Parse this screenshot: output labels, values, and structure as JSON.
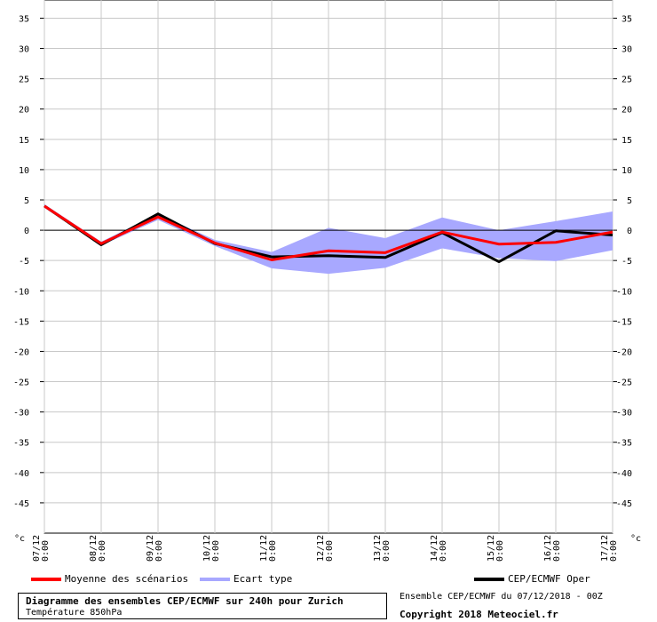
{
  "chart_data": {
    "type": "line",
    "title": "Diagramme des ensembles CEP/ECMWF sur 240h pour Zurich",
    "subtitle": "Température 850hPa",
    "ylabel": "°c",
    "ylim": [
      -50,
      38
    ],
    "yticks": [
      35,
      30,
      25,
      20,
      15,
      10,
      5,
      0,
      -5,
      -10,
      -15,
      -20,
      -25,
      -30,
      -35,
      -40,
      -45
    ],
    "x": [
      "07/12 0:00",
      "08/12 0:00",
      "09/12 0:00",
      "10/12 0:00",
      "11/12 0:00",
      "12/12 0:00",
      "13/12 0:00",
      "14/12 0:00",
      "15/12 0:00",
      "16/12 0:00",
      "17/12 0:00"
    ],
    "x_labels": [
      {
        "date": "07/12",
        "time": "0:00"
      },
      {
        "date": "08/12",
        "time": "0:00"
      },
      {
        "date": "09/12",
        "time": "0:00"
      },
      {
        "date": "10/12",
        "time": "0:00"
      },
      {
        "date": "11/12",
        "time": "0:00"
      },
      {
        "date": "12/12",
        "time": "0:00"
      },
      {
        "date": "13/12",
        "time": "0:00"
      },
      {
        "date": "14/12",
        "time": "0:00"
      },
      {
        "date": "15/12",
        "time": "0:00"
      },
      {
        "date": "16/12",
        "time": "0:00"
      },
      {
        "date": "17/12",
        "time": "0:00"
      }
    ],
    "grid": true,
    "series": [
      {
        "name": "Moyenne des scénarios",
        "color": "#ff0000",
        "values": [
          4.0,
          -2.2,
          2.2,
          -2.1,
          -4.9,
          -3.4,
          -3.7,
          -0.3,
          -2.3,
          -2.0,
          -0.3
        ]
      },
      {
        "name": "CEP/ECMWF Oper",
        "color": "#000000",
        "values": [
          4.0,
          -2.4,
          2.7,
          -2.2,
          -4.4,
          -4.2,
          -4.5,
          -0.4,
          -5.2,
          -0.1,
          -0.8
        ]
      }
    ],
    "band": {
      "name": "Ecart type",
      "color": "#a8a8ff",
      "upper": [
        4.3,
        -1.9,
        2.7,
        -1.6,
        -3.6,
        0.4,
        -1.3,
        2.1,
        0.0,
        1.5,
        3.1
      ],
      "lower": [
        3.7,
        -2.5,
        1.7,
        -2.6,
        -6.3,
        -7.2,
        -6.2,
        -3.0,
        -4.6,
        -5.1,
        -3.3
      ]
    }
  },
  "legend": {
    "mean": "Moyenne des scénarios",
    "spread": "Ecart type",
    "oper": "CEP/ECMWF Oper"
  },
  "footer": {
    "title": "Diagramme des ensembles CEP/ECMWF sur 240h pour Zurich",
    "subtitle": "Température 850hPa",
    "run_info": "Ensemble CEP/ECMWF du 07/12/2018 - 00Z",
    "copyright": "Copyright 2018 Meteociel.fr"
  },
  "axis_unit": "°c"
}
